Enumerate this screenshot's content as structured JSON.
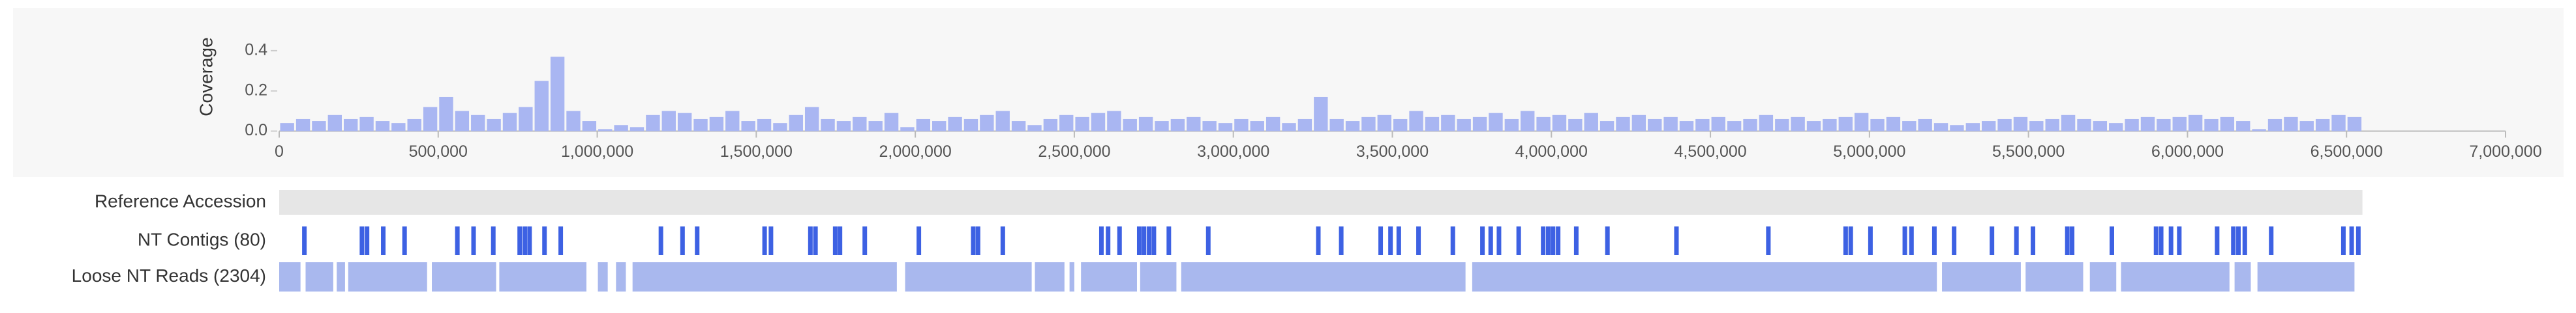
{
  "chart_data": {
    "type": "histogram",
    "y_label": "Coverage",
    "color": "#a9b6f2",
    "bins": [
      0,
      50000,
      100000,
      150000,
      200000,
      250000,
      300000,
      350000,
      400000,
      450000,
      500000,
      550000,
      600000,
      650000,
      700000,
      750000,
      800000,
      850000,
      900000,
      950000,
      1000000,
      1050000,
      1100000,
      1150000,
      1200000,
      1250000,
      1300000,
      1350000,
      1400000,
      1450000,
      1500000,
      1550000,
      1600000,
      1650000,
      1700000,
      1750000,
      1800000,
      1850000,
      1900000,
      1950000,
      2000000,
      2050000,
      2100000,
      2150000,
      2200000,
      2250000,
      2300000,
      2350000,
      2400000,
      2450000,
      2500000,
      2550000,
      2600000,
      2650000,
      2700000,
      2750000,
      2800000,
      2850000,
      2900000,
      2950000,
      3000000,
      3050000,
      3100000,
      3150000,
      3200000,
      3250000,
      3300000,
      3350000,
      3400000,
      3450000,
      3500000,
      3550000,
      3600000,
      3650000,
      3700000,
      3750000,
      3800000,
      3850000,
      3900000,
      3950000,
      4000000,
      4050000,
      4100000,
      4150000,
      4200000,
      4250000,
      4300000,
      4350000,
      4400000,
      4450000,
      4500000,
      4550000,
      4600000,
      4650000,
      4700000,
      4750000,
      4800000,
      4850000,
      4900000,
      4950000,
      5000000,
      5050000,
      5100000,
      5150000,
      5200000,
      5250000,
      5300000,
      5350000,
      5400000,
      5450000,
      5500000,
      5550000,
      5600000,
      5650000,
      5700000,
      5750000,
      5800000,
      5850000,
      5900000,
      5950000,
      6000000,
      6050000,
      6100000,
      6150000,
      6200000,
      6250000,
      6300000,
      6350000,
      6400000,
      6450000,
      6500000,
      6550000
    ],
    "values": [
      0.04,
      0.06,
      0.05,
      0.08,
      0.06,
      0.07,
      0.05,
      0.04,
      0.06,
      0.12,
      0.17,
      0.1,
      0.08,
      0.06,
      0.09,
      0.12,
      0.25,
      0.37,
      0.1,
      0.05,
      0.01,
      0.03,
      0.02,
      0.08,
      0.1,
      0.09,
      0.06,
      0.07,
      0.1,
      0.05,
      0.06,
      0.04,
      0.08,
      0.12,
      0.06,
      0.05,
      0.07,
      0.05,
      0.09,
      0.02,
      0.06,
      0.05,
      0.07,
      0.06,
      0.08,
      0.1,
      0.05,
      0.03,
      0.06,
      0.08,
      0.07,
      0.09,
      0.1,
      0.06,
      0.07,
      0.05,
      0.06,
      0.07,
      0.05,
      0.04,
      0.06,
      0.05,
      0.07,
      0.04,
      0.06,
      0.17,
      0.06,
      0.05,
      0.07,
      0.08,
      0.06,
      0.1,
      0.07,
      0.08,
      0.06,
      0.07,
      0.09,
      0.06,
      0.1,
      0.07,
      0.08,
      0.06,
      0.09,
      0.05,
      0.07,
      0.08,
      0.06,
      0.07,
      0.05,
      0.06,
      0.07,
      0.05,
      0.06,
      0.08,
      0.06,
      0.07,
      0.05,
      0.06,
      0.07,
      0.09,
      0.06,
      0.07,
      0.05,
      0.06,
      0.04,
      0.03,
      0.04,
      0.05,
      0.06,
      0.07,
      0.05,
      0.06,
      0.08,
      0.06,
      0.05,
      0.04,
      0.06,
      0.07,
      0.06,
      0.07,
      0.08,
      0.06,
      0.07,
      0.05,
      0.01,
      0.06,
      0.07,
      0.05,
      0.06,
      0.08,
      0.07
    ],
    "xlim": [
      0,
      7000000
    ],
    "xticks": [
      0,
      {
        "value": 500000,
        "label": "500,000"
      },
      {
        "value": 1000000,
        "label": "1,000,000"
      },
      {
        "value": 1500000,
        "label": "1,500,000"
      },
      {
        "value": 2000000,
        "label": "2,000,000"
      },
      {
        "value": 2500000,
        "label": "2,500,000"
      },
      {
        "value": 3000000,
        "label": "3,000,000"
      },
      {
        "value": 3500000,
        "label": "3,500,000"
      },
      {
        "value": 4000000,
        "label": "4,000,000"
      },
      {
        "value": 4500000,
        "label": "4,500,000"
      },
      {
        "value": 5000000,
        "label": "5,000,000"
      },
      {
        "value": 5500000,
        "label": "5,500,000"
      },
      {
        "value": 6000000,
        "label": "6,000,000"
      },
      {
        "value": 6500000,
        "label": "6,500,000"
      },
      {
        "value": 7000000,
        "label": "7,000,000"
      }
    ],
    "ylim": [
      0,
      0.5
    ],
    "yticks": [
      {
        "value": 0,
        "label": "0.0"
      },
      0.2,
      0.4
    ],
    "tracks": [
      {
        "label": "Reference Accession",
        "color": "#e6e6e6",
        "ranges": [
          [
            0,
            6550000
          ]
        ]
      },
      {
        "label": "NT Contigs (80)",
        "color": "#3d61e3",
        "positions": [
          72000,
          253000,
          269000,
          320000,
          387000,
          553000,
          604000,
          666000,
          749000,
          765000,
          780000,
          827000,
          878000,
          1193000,
          1261000,
          1307000,
          1519000,
          1539000,
          1663000,
          1679000,
          1741000,
          1756000,
          1834000,
          2004000,
          2175000,
          2190000,
          2268000,
          2578000,
          2599000,
          2635000,
          2697000,
          2712000,
          2728000,
          2743000,
          2790000,
          2914000,
          3260000,
          3332000,
          3456000,
          3487000,
          3513000,
          3575000,
          3683000,
          3776000,
          3802000,
          3828000,
          3890000,
          3967000,
          3983000,
          3998000,
          4014000,
          4071000,
          4169000,
          4386000,
          4675000,
          4918000,
          4934000,
          4996000,
          5104000,
          5125000,
          5197000,
          5259000,
          5378000,
          5455000,
          5507000,
          5615000,
          5630000,
          5755000,
          5894000,
          5910000,
          5941000,
          5967000,
          6086000,
          6137000,
          6153000,
          6173000,
          6256000,
          6483000,
          6509000,
          6530000
        ]
      },
      {
        "label": "Loose NT Reads (2304)",
        "color": "#a9b8ee",
        "ranges": [
          [
            0,
            67000
          ],
          [
            83000,
            170000
          ],
          [
            181000,
            207000
          ],
          [
            217000,
            465000
          ],
          [
            480000,
            682000
          ],
          [
            692000,
            966000
          ],
          [
            1002000,
            1033000
          ],
          [
            1059000,
            1090000
          ],
          [
            1111000,
            1942000
          ],
          [
            1968000,
            2366000
          ],
          [
            2376000,
            2469000
          ],
          [
            2485000,
            2500000
          ],
          [
            2521000,
            2697000
          ],
          [
            2707000,
            2821000
          ],
          [
            2836000,
            3730000
          ],
          [
            3751000,
            5212000
          ],
          [
            5228000,
            5476000
          ],
          [
            5491000,
            5672000
          ],
          [
            5693000,
            5776000
          ],
          [
            5791000,
            6132000
          ],
          [
            6148000,
            6199000
          ],
          [
            6220000,
            6525000
          ]
        ]
      }
    ]
  }
}
